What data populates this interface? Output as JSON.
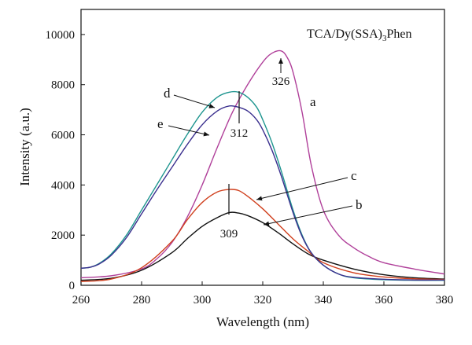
{
  "chart_data": {
    "type": "line",
    "title": "TCA/Dy(SSA)",
    "title_sub": "3",
    "title_tail": "Phen",
    "xlabel": "Wavelength (nm)",
    "ylabel": "Intensity (a.u.)",
    "xlim": [
      260,
      380
    ],
    "ylim": [
      0,
      11000
    ],
    "xticks": [
      260,
      280,
      300,
      320,
      340,
      360,
      380
    ],
    "yticks": [
      0,
      2000,
      4000,
      6000,
      8000,
      10000
    ],
    "grid": false,
    "series": [
      {
        "name": "a",
        "color": "#b0409a",
        "x": [
          260,
          270,
          280,
          285,
          290,
          295,
          300,
          305,
          310,
          315,
          320,
          323,
          326,
          328,
          330,
          333,
          336,
          340,
          345,
          350,
          355,
          360,
          370,
          380
        ],
        "y": [
          300,
          380,
          650,
          1050,
          1700,
          2700,
          4000,
          5500,
          6900,
          8000,
          8900,
          9250,
          9350,
          9100,
          8500,
          6900,
          4800,
          3000,
          2000,
          1500,
          1150,
          900,
          650,
          450
        ]
      },
      {
        "name": "b",
        "color": "#111111",
        "x": [
          260,
          270,
          280,
          290,
          295,
          300,
          305,
          309,
          312,
          315,
          320,
          325,
          330,
          335,
          340,
          350,
          360,
          370,
          380
        ],
        "y": [
          200,
          280,
          600,
          1300,
          1850,
          2350,
          2700,
          2900,
          2880,
          2780,
          2500,
          2100,
          1650,
          1250,
          1000,
          650,
          420,
          300,
          250
        ]
      },
      {
        "name": "c",
        "color": "#d0401e",
        "x": [
          260,
          270,
          280,
          290,
          295,
          300,
          305,
          309,
          312,
          315,
          320,
          325,
          330,
          335,
          340,
          350,
          360,
          370,
          380
        ],
        "y": [
          150,
          250,
          700,
          1750,
          2600,
          3300,
          3720,
          3820,
          3780,
          3550,
          3050,
          2450,
          1850,
          1350,
          900,
          500,
          330,
          260,
          230
        ]
      },
      {
        "name": "d",
        "color": "#1e958f",
        "x": [
          260,
          263,
          266,
          270,
          275,
          280,
          285,
          290,
          295,
          300,
          305,
          309,
          312,
          315,
          318,
          320,
          323,
          326,
          330,
          333,
          336,
          340,
          345,
          350,
          360,
          370,
          380
        ],
        "y": [
          680,
          720,
          870,
          1250,
          2000,
          3000,
          4000,
          5000,
          6000,
          6900,
          7500,
          7700,
          7700,
          7500,
          7100,
          6600,
          5700,
          4600,
          3000,
          2000,
          1300,
          800,
          450,
          300,
          220,
          200,
          200
        ]
      },
      {
        "name": "e",
        "color": "#3a2f8e",
        "x": [
          260,
          263,
          266,
          270,
          275,
          280,
          285,
          290,
          295,
          300,
          305,
          309,
          312,
          315,
          318,
          320,
          323,
          326,
          330,
          333,
          336,
          340,
          345,
          350,
          360,
          370,
          380
        ],
        "y": [
          680,
          720,
          850,
          1200,
          1900,
          2850,
          3800,
          4700,
          5600,
          6400,
          6950,
          7150,
          7100,
          6950,
          6600,
          6200,
          5400,
          4400,
          2900,
          1950,
          1300,
          800,
          450,
          320,
          240,
          210,
          210
        ]
      }
    ],
    "annotations": [
      {
        "text": "326",
        "x": 326,
        "y": 8500
      },
      {
        "text": "312",
        "x": 312,
        "y": 6500
      },
      {
        "text": "309",
        "x": 309,
        "y": 2000
      }
    ]
  }
}
